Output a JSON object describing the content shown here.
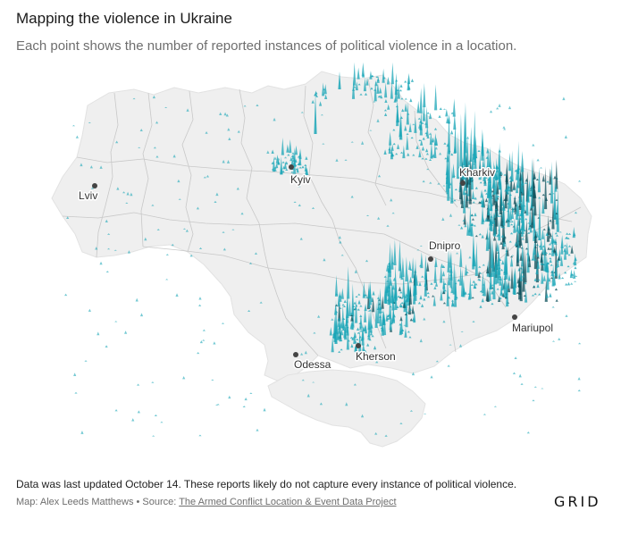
{
  "header": {
    "title": "Mapping the violence in Ukraine",
    "subtitle": "Each point shows the number of reported instances of political violence in a location."
  },
  "map": {
    "land_color": "#efefef",
    "border_color": "#c8c8c8",
    "spike_color": "#1aa6b7",
    "spike_dark_color": "#0b4f59",
    "cities": [
      {
        "name": "Kyiv"
      },
      {
        "name": "Lviv"
      },
      {
        "name": "Kharkiv"
      },
      {
        "name": "Dnipro"
      },
      {
        "name": "Mariupol"
      },
      {
        "name": "Odessa"
      },
      {
        "name": "Kherson"
      }
    ]
  },
  "footer": {
    "note": "Data was last updated October 14. These reports likely do not capture every instance of political violence.",
    "credit_prefix": "Map: Alex Leeds Matthews • Source: ",
    "source_link": "The Armed Conflict Location & Event Data Project",
    "logo": "GRID"
  }
}
